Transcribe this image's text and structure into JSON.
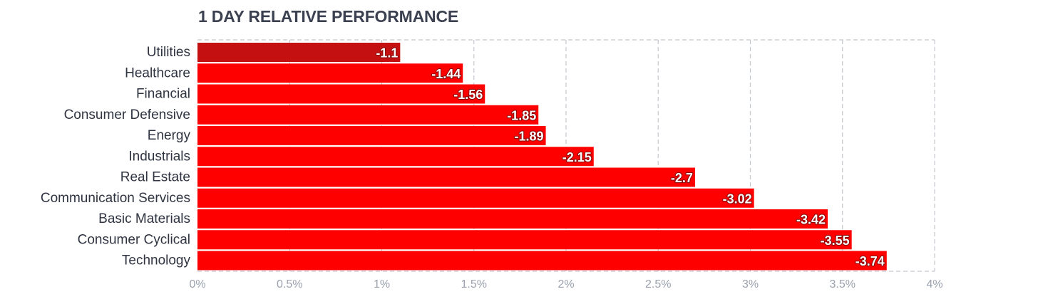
{
  "header": {
    "title": "1 DAY RELATIVE PERFORMANCE"
  },
  "chart_data": {
    "type": "bar",
    "orientation": "horizontal",
    "title": "1 DAY RELATIVE PERFORMANCE",
    "categories": [
      "Utilities",
      "Healthcare",
      "Financial",
      "Consumer Defensive",
      "Energy",
      "Industrials",
      "Real Estate",
      "Communication Services",
      "Basic Materials",
      "Consumer Cyclical",
      "Technology"
    ],
    "values": [
      -1.1,
      -1.44,
      -1.56,
      -1.85,
      -1.89,
      -2.15,
      -2.7,
      -3.02,
      -3.42,
      -3.55,
      -3.74
    ],
    "value_labels": [
      "-1.1",
      "-1.44",
      "-1.56",
      "-1.85",
      "-1.89",
      "-2.15",
      "-2.7",
      "-3.02",
      "-3.42",
      "-3.55",
      "-3.74"
    ],
    "x_ticks": [
      0,
      0.5,
      1,
      1.5,
      2,
      2.5,
      3,
      3.5,
      4
    ],
    "x_tick_labels": [
      "0%",
      "0.5%",
      "1%",
      "1.5%",
      "2%",
      "2.5%",
      "3%",
      "3.5%",
      "4%"
    ],
    "xlim": [
      0,
      4
    ],
    "xlabel": "",
    "ylabel": "",
    "grid": true,
    "legend": "none",
    "colors": {
      "bar": "#ff0000",
      "bar_highlight": "#c41010",
      "grid": "#c4c8cf",
      "tick_text": "#9aa1ad",
      "label_text": "#2f3441"
    }
  }
}
